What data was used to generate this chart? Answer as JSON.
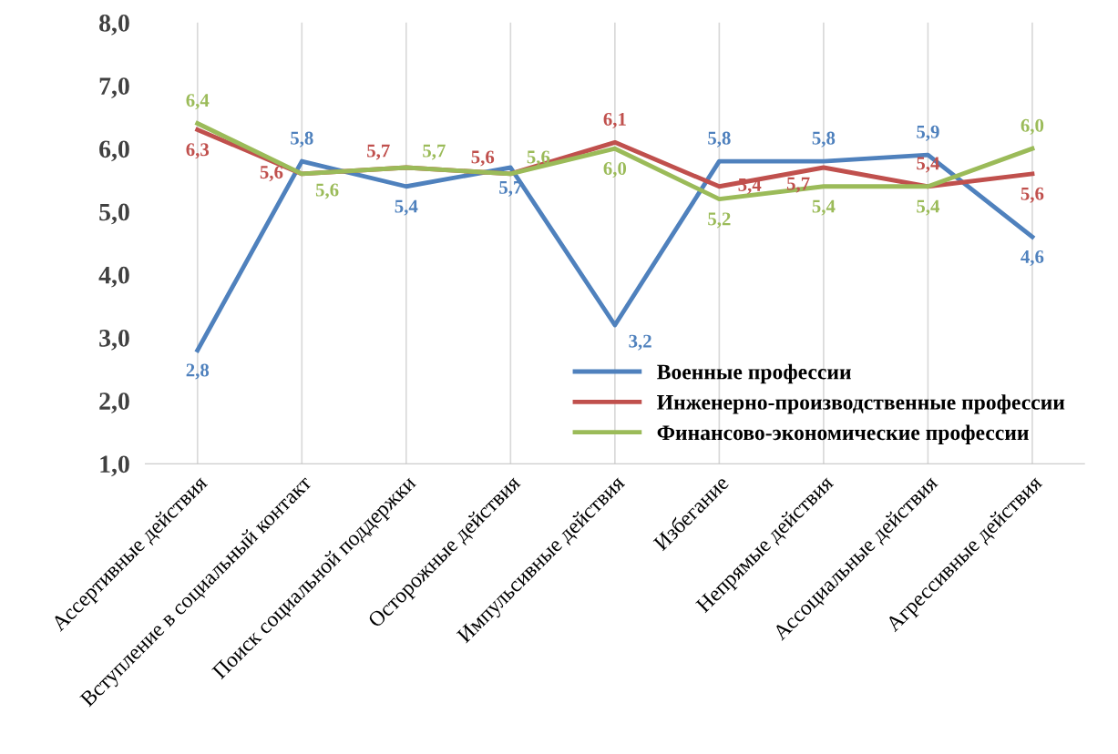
{
  "chart_data": {
    "type": "line",
    "categories": [
      "Ассертивные действия",
      "Вступление в социальный контакт",
      "Поиск социальной поддержки",
      "Осторожные действия",
      "Импульсивные действия",
      "Избегание",
      "Непрямые действия",
      "Ассоциальные действия",
      "Агрессивные действия"
    ],
    "series": [
      {
        "name": "Военные профессии",
        "color": "#4f81bd",
        "values": [
          2.8,
          5.8,
          5.4,
          5.7,
          3.2,
          5.8,
          5.8,
          5.9,
          4.6
        ],
        "value_labels": [
          "2,8",
          "5,8",
          "5,4",
          "5,7",
          "3,2",
          "5,8",
          "5,8",
          "5,9",
          "4,6"
        ]
      },
      {
        "name": "Инженерно-производственные профессии",
        "color": "#c0504d",
        "values": [
          6.3,
          5.6,
          5.7,
          5.6,
          6.1,
          5.4,
          5.7,
          5.4,
          5.6
        ],
        "value_labels": [
          "6,3",
          "5,6",
          "5,7",
          "5,6",
          "6,1",
          "5,4",
          "5,7",
          "5,4",
          "5,6"
        ]
      },
      {
        "name": "Финансово-экономические профессии",
        "color": "#9bbb59",
        "values": [
          6.4,
          5.6,
          5.7,
          5.6,
          6.0,
          5.2,
          5.4,
          5.4,
          6.0
        ],
        "value_labels": [
          "6,4",
          "5,6",
          "5,7",
          "5,6",
          "6,0",
          "5,2",
          "5,4",
          "5,4",
          "6,0"
        ]
      }
    ],
    "ylim": [
      1.0,
      8.0
    ],
    "yticks": [
      {
        "value": 1,
        "label": "1,0"
      },
      {
        "value": 2,
        "label": "2,0"
      },
      {
        "value": 3,
        "label": "3,0"
      },
      {
        "value": 4,
        "label": "4,0"
      },
      {
        "value": 5,
        "label": "5,0"
      },
      {
        "value": 6,
        "label": "6,0"
      },
      {
        "value": 7,
        "label": "7,0"
      },
      {
        "value": 8,
        "label": "8,0"
      }
    ],
    "grid": "x",
    "legend": "bottom right",
    "marker": "none",
    "line_style": "solid"
  }
}
